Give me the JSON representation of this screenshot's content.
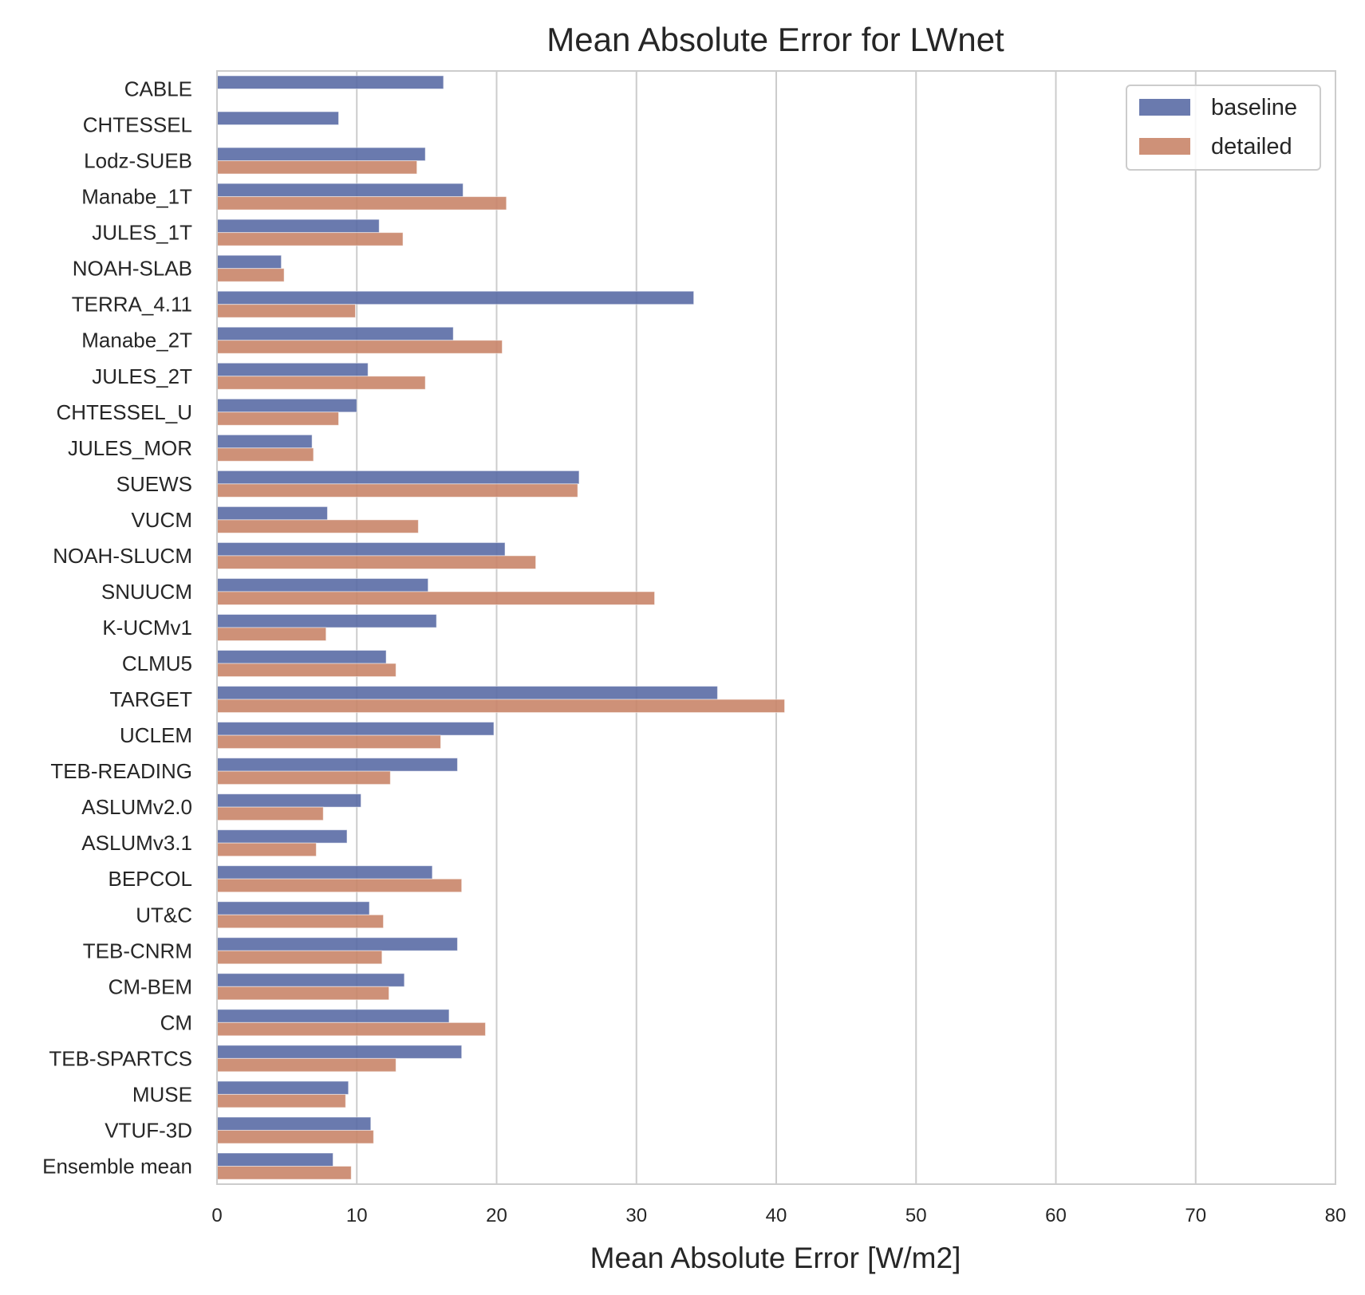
{
  "chart_data": {
    "type": "bar",
    "orientation": "horizontal",
    "title": "Mean Absolute Error for LWnet",
    "xlabel": "Mean Absolute Error [W/m2]",
    "ylabel": "",
    "xlim": [
      0,
      80
    ],
    "xticks": [
      0,
      10,
      20,
      30,
      40,
      50,
      60,
      70,
      80
    ],
    "grid": true,
    "legend_position": "top-right",
    "categories": [
      "CABLE",
      "CHTESSEL",
      "Lodz-SUEB",
      "Manabe_1T",
      "JULES_1T",
      "NOAH-SLAB",
      "TERRA_4.11",
      "Manabe_2T",
      "JULES_2T",
      "CHTESSEL_U",
      "JULES_MOR",
      "SUEWS",
      "VUCM",
      "NOAH-SLUCM",
      "SNUUCM",
      "K-UCMv1",
      "CLMU5",
      "TARGET",
      "UCLEM",
      "TEB-READING",
      "ASLUMv2.0",
      "ASLUMv3.1",
      "BEPCOL",
      "UT&C",
      "TEB-CNRM",
      "CM-BEM",
      "CM",
      "TEB-SPARTCS",
      "MUSE",
      "VTUF-3D",
      "Ensemble mean"
    ],
    "series": [
      {
        "name": "baseline",
        "color": "#5a6ca5",
        "values": [
          16.2,
          8.7,
          14.9,
          17.6,
          11.6,
          4.6,
          34.1,
          16.9,
          10.8,
          10.0,
          6.8,
          25.9,
          7.9,
          20.6,
          15.1,
          15.7,
          12.1,
          35.8,
          19.8,
          17.2,
          10.3,
          9.3,
          15.4,
          10.9,
          17.2,
          13.4,
          16.6,
          17.5,
          9.4,
          11.0,
          8.3
        ]
      },
      {
        "name": "detailed",
        "color": "#c98569",
        "values": [
          null,
          null,
          14.3,
          20.7,
          13.3,
          4.8,
          9.9,
          20.4,
          14.9,
          8.7,
          6.9,
          25.8,
          14.4,
          22.8,
          31.3,
          7.8,
          12.8,
          40.6,
          16.0,
          12.4,
          7.6,
          7.1,
          17.5,
          11.9,
          11.8,
          12.3,
          19.2,
          12.8,
          9.2,
          11.2,
          9.6
        ]
      }
    ]
  },
  "colors": {
    "grid": "#cccccc",
    "frame": "#cccccc",
    "text": "#262626"
  }
}
